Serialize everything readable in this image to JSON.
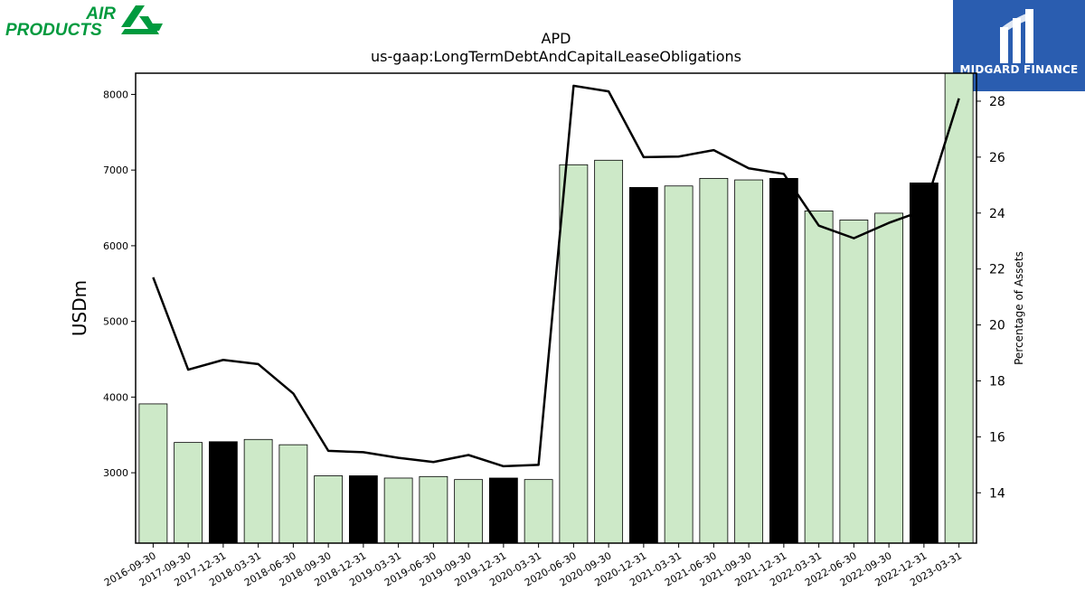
{
  "logos": {
    "left_line1": "AIR",
    "left_line2": "PRODUCTS",
    "right_text": "MIDGARD FINANCE",
    "colors": {
      "air_products_green": "#009a3e",
      "midgard_blue": "#2a5db0"
    }
  },
  "chart_data": {
    "type": "bar",
    "title": "APD",
    "subtitle": "us-gaap:LongTermDebtAndCapitalLeaseObligations",
    "ylabel": "USDm",
    "y2label": "Percentage of Assets",
    "ylim": [
      2070,
      8280
    ],
    "y2lim": [
      12.2,
      29.0
    ],
    "yticks": [
      3000,
      4000,
      5000,
      6000,
      7000,
      8000
    ],
    "y2ticks": [
      14,
      16,
      18,
      20,
      22,
      24,
      26,
      28
    ],
    "categories": [
      "2016-09-30",
      "2017-09-30",
      "2017-12-31",
      "2018-03-31",
      "2018-06-30",
      "2018-09-30",
      "2018-12-31",
      "2019-03-31",
      "2019-06-30",
      "2019-09-30",
      "2019-12-31",
      "2020-03-31",
      "2020-06-30",
      "2020-09-30",
      "2020-12-31",
      "2021-03-31",
      "2021-06-30",
      "2021-09-30",
      "2021-12-31",
      "2022-03-31",
      "2022-06-30",
      "2022-09-30",
      "2022-12-31",
      "2023-03-31"
    ],
    "series": [
      {
        "type": "bar",
        "values": [
          3910,
          3400,
          3410,
          3440,
          3370,
          2960,
          2960,
          2930,
          2950,
          2910,
          2930,
          2910,
          7070,
          7130,
          6770,
          6790,
          6890,
          6870,
          6890,
          6460,
          6340,
          6430,
          6830,
          8290
        ],
        "highlight": [
          false,
          false,
          true,
          false,
          false,
          false,
          true,
          false,
          false,
          false,
          true,
          false,
          false,
          false,
          true,
          false,
          false,
          false,
          true,
          false,
          false,
          false,
          true,
          false
        ]
      },
      {
        "type": "line",
        "axis": "right",
        "values": [
          21.7,
          18.4,
          18.75,
          18.6,
          17.55,
          15.5,
          15.45,
          15.25,
          15.1,
          15.35,
          14.95,
          15.0,
          28.55,
          28.35,
          26.0,
          26.02,
          26.25,
          25.6,
          25.4,
          23.55,
          23.1,
          23.65,
          24.1,
          28.1
        ]
      }
    ],
    "colors": {
      "bar": "#cde9c8",
      "highlight_bar": "#000000",
      "line": "#000000"
    },
    "grid": false,
    "legend": "none"
  }
}
